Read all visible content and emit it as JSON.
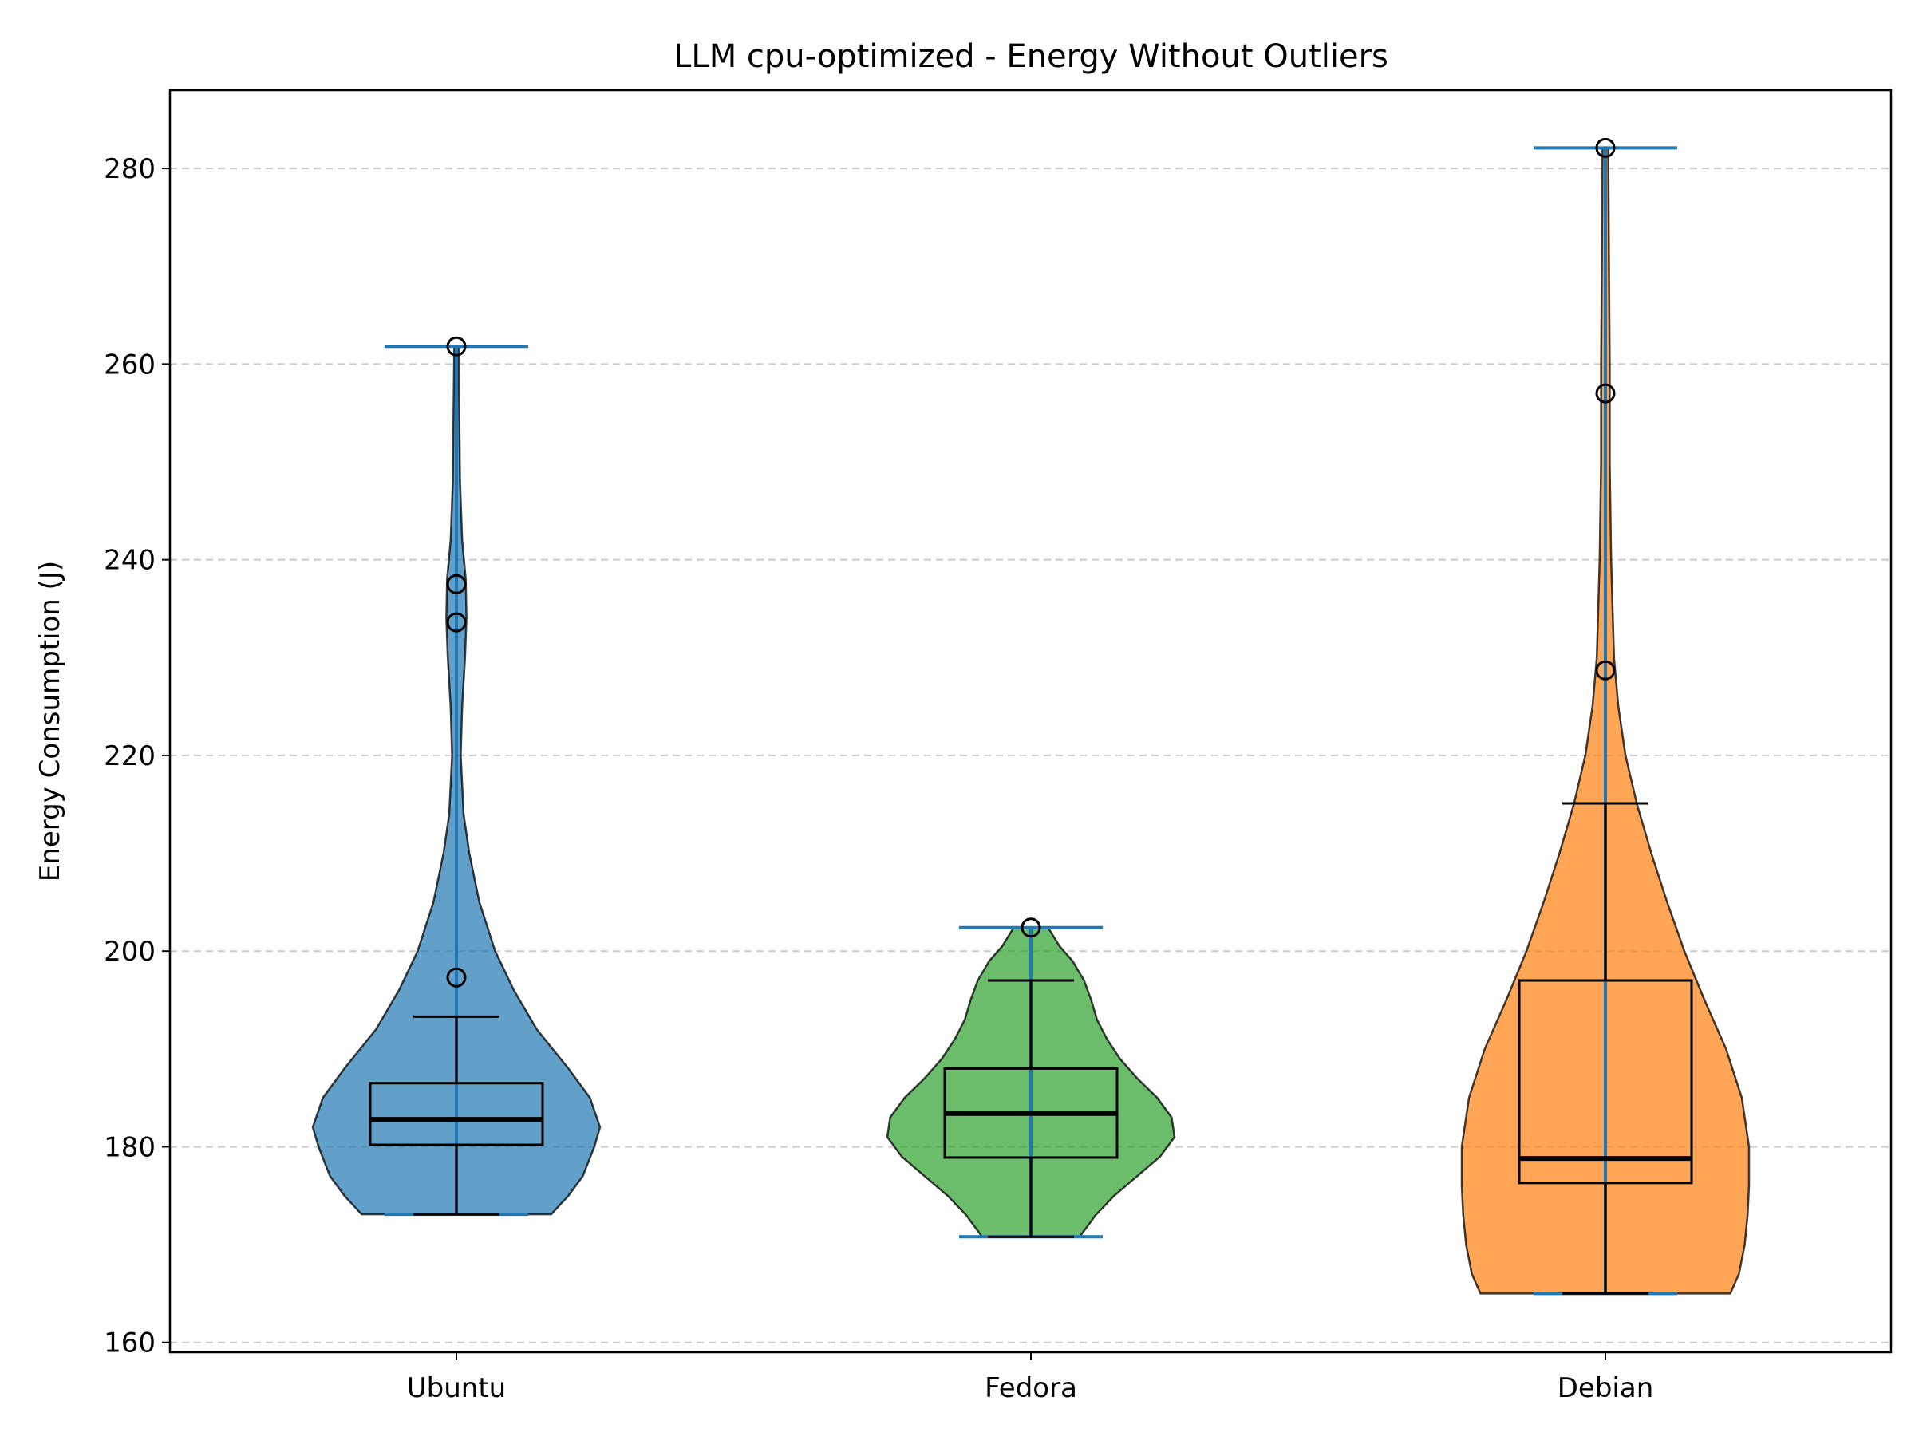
{
  "chart_data": {
    "type": "violin",
    "title": "LLM cpu-optimized - Energy Without Outliers",
    "xlabel": "",
    "ylabel": "Energy Consumption (J)",
    "ylim": [
      159,
      288
    ],
    "yticks": [
      160,
      180,
      200,
      220,
      240,
      260,
      280
    ],
    "grid": "y-dashed",
    "categories": [
      "Ubuntu",
      "Fedora",
      "Debian"
    ],
    "colors": {
      "Ubuntu": "#1f77b4",
      "Fedora": "#2ca02c",
      "Debian": "#ff7f0e",
      "extrema": "#1f77b4"
    },
    "series": [
      {
        "category": "Ubuntu",
        "min": 173.1,
        "max": 261.8,
        "box": {
          "whisker_low": 173.1,
          "q1": 180.2,
          "median": 182.8,
          "q3": 186.5,
          "whisker_high": 193.3
        },
        "outliers": [
          197.3,
          233.6,
          237.5,
          261.8
        ],
        "density": [
          [
            173.1,
            0.66
          ],
          [
            175,
            0.78
          ],
          [
            177,
            0.88
          ],
          [
            180,
            0.96
          ],
          [
            182,
            1.0
          ],
          [
            185,
            0.93
          ],
          [
            188,
            0.78
          ],
          [
            192,
            0.56
          ],
          [
            196,
            0.4
          ],
          [
            200,
            0.27
          ],
          [
            205,
            0.16
          ],
          [
            210,
            0.09
          ],
          [
            214,
            0.05
          ],
          [
            220,
            0.03
          ],
          [
            225,
            0.04
          ],
          [
            230,
            0.06
          ],
          [
            234,
            0.07
          ],
          [
            238,
            0.065
          ],
          [
            242,
            0.04
          ],
          [
            248,
            0.025
          ],
          [
            255,
            0.02
          ],
          [
            261.8,
            0.015
          ]
        ]
      },
      {
        "category": "Fedora",
        "min": 170.8,
        "max": 202.4,
        "box": {
          "whisker_low": 170.8,
          "q1": 178.9,
          "median": 183.4,
          "q3": 188.0,
          "whisker_high": 197.0
        },
        "outliers": [
          202.4
        ],
        "density": [
          [
            170.8,
            0.34
          ],
          [
            173,
            0.45
          ],
          [
            175,
            0.58
          ],
          [
            177,
            0.74
          ],
          [
            179,
            0.9
          ],
          [
            181,
            1.0
          ],
          [
            183,
            0.98
          ],
          [
            185,
            0.88
          ],
          [
            187,
            0.74
          ],
          [
            189,
            0.62
          ],
          [
            191,
            0.53
          ],
          [
            193,
            0.46
          ],
          [
            195,
            0.42
          ],
          [
            197,
            0.37
          ],
          [
            199,
            0.29
          ],
          [
            200.5,
            0.2
          ],
          [
            202.4,
            0.12
          ]
        ]
      },
      {
        "category": "Debian",
        "min": 165.0,
        "max": 282.1,
        "box": {
          "whisker_low": 165.0,
          "q1": 176.3,
          "median": 178.8,
          "q3": 197.0,
          "whisker_high": 215.1
        },
        "outliers": [
          228.7,
          257.0,
          282.1
        ],
        "density": [
          [
            165,
            0.87
          ],
          [
            167,
            0.93
          ],
          [
            170,
            0.97
          ],
          [
            173,
            0.99
          ],
          [
            176,
            1.0
          ],
          [
            180,
            1.0
          ],
          [
            185,
            0.95
          ],
          [
            190,
            0.84
          ],
          [
            195,
            0.69
          ],
          [
            200,
            0.55
          ],
          [
            205,
            0.43
          ],
          [
            210,
            0.32
          ],
          [
            215,
            0.22
          ],
          [
            220,
            0.14
          ],
          [
            225,
            0.09
          ],
          [
            230,
            0.06
          ],
          [
            240,
            0.04
          ],
          [
            250,
            0.03
          ],
          [
            260,
            0.03
          ],
          [
            270,
            0.025
          ],
          [
            282.1,
            0.02
          ]
        ]
      }
    ]
  }
}
